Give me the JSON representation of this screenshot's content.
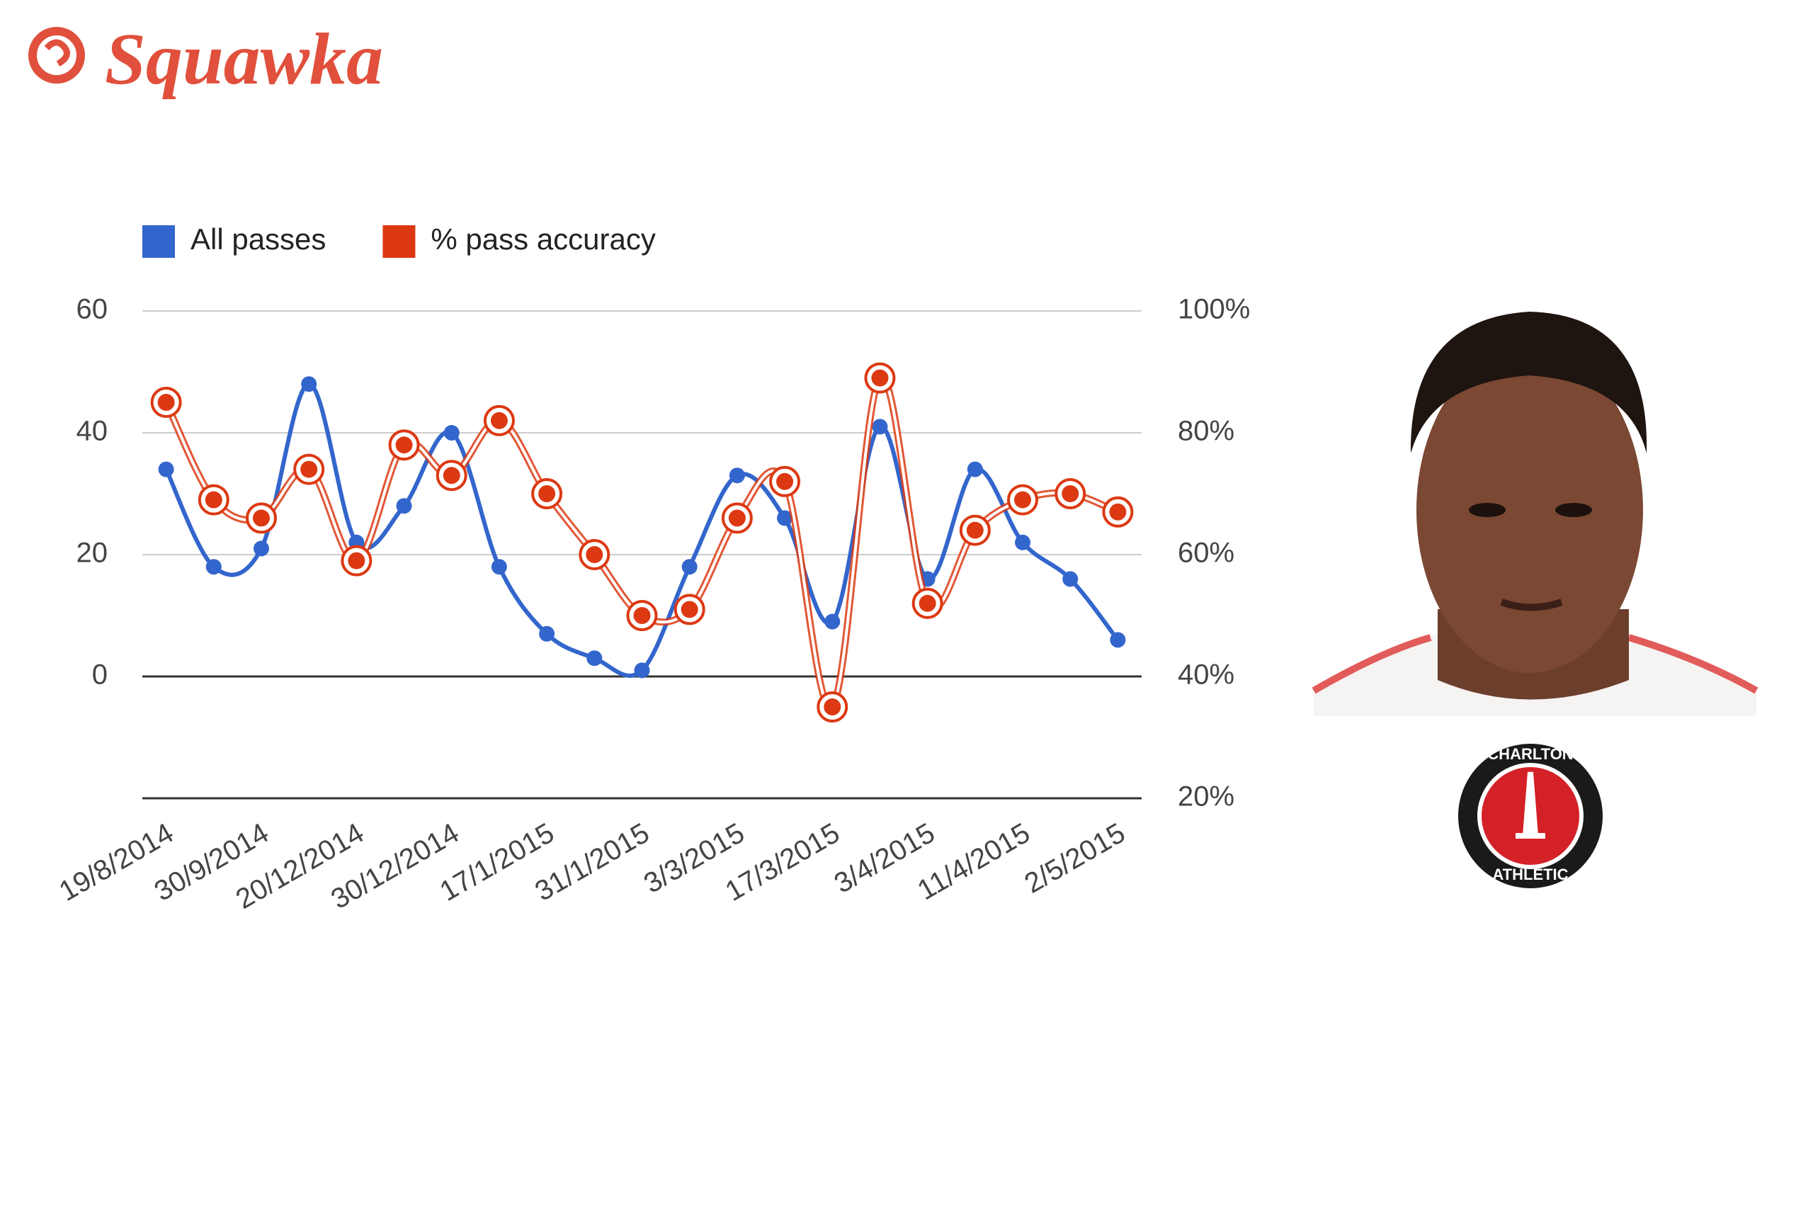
{
  "brand": "Squawka",
  "badge": {
    "top_text": "CHARLTON",
    "bottom_text": "ATHLETIC"
  },
  "chart_data": {
    "type": "line",
    "smooth": true,
    "grid": true,
    "legend": "top",
    "categories": [
      "19/8/2014",
      null,
      "30/9/2014",
      null,
      "20/12/2014",
      null,
      "30/12/2014",
      null,
      "17/1/2015",
      null,
      "31/1/2015",
      null,
      "3/3/2015",
      null,
      "17/3/2015",
      null,
      "3/4/2015",
      null,
      "11/4/2015",
      null,
      "2/5/2015"
    ],
    "series": [
      {
        "name": "All passes",
        "color": "#3366cc",
        "values": [
          34,
          18,
          21,
          48,
          22,
          28,
          40,
          18,
          7,
          3,
          1,
          18,
          33,
          26,
          9,
          41,
          16,
          34,
          22,
          16,
          6
        ]
      },
      {
        "name": "% pass accuracy",
        "color": "#dc3912",
        "axis": "y2",
        "values": [
          85,
          69,
          66,
          74,
          59,
          78,
          73,
          82,
          70,
          60,
          50,
          51,
          66,
          72,
          35,
          89,
          52,
          64,
          69,
          70,
          67
        ]
      }
    ],
    "ylim": [
      -20,
      60
    ],
    "yticks": [
      0,
      20,
      40,
      60
    ],
    "y2lim": [
      20,
      100
    ],
    "y2ticks": [
      {
        "value": 20,
        "label": "20%"
      },
      {
        "value": 40,
        "label": "40%"
      },
      {
        "value": 60,
        "label": "60%"
      },
      {
        "value": 80,
        "label": "80%"
      },
      {
        "value": 100,
        "label": "100%"
      }
    ]
  }
}
